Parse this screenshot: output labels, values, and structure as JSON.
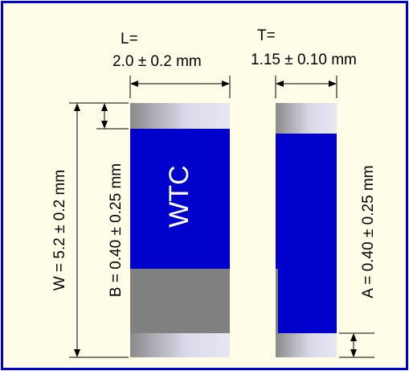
{
  "colors": {
    "frame": "#0000cc",
    "background": "#fffde8",
    "body_blue": "#0000cc",
    "gray_band": "#808080",
    "terminal_light": "#d8d8e8",
    "terminal_dark": "#8a8a8a",
    "wtc_text": "#ffffff",
    "line": "#000000"
  },
  "labels": {
    "length_line1": "L=",
    "length_line2": "2.0 ± 0.2 mm",
    "thickness_line1": "T=",
    "thickness_line2": "1.15 ± 0.10 mm",
    "width": "W = 5.2 ± 0.2 mm",
    "band_b": "B = 0.40 ± 0.25 mm",
    "band_a": "A = 0.40 ± 0.25 mm",
    "marking": "WTC"
  },
  "icons": {
    "arrowhead": "arrow-marker"
  }
}
